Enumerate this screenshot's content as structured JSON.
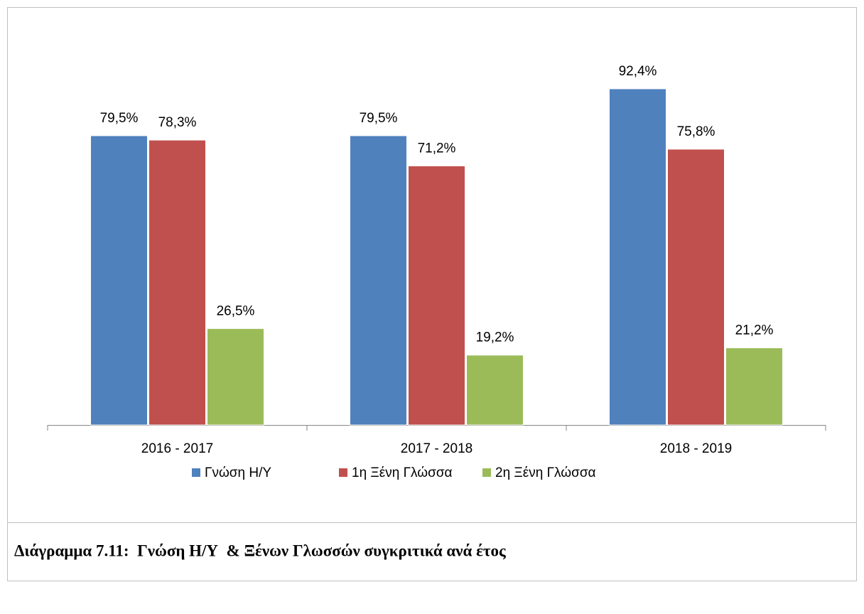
{
  "chart_data": {
    "type": "bar",
    "title": "Διάγραμμα 7.11:  Γνώση Η/Υ  & Ξένων Γλωσσών συγκριτικά ανά έτος",
    "categories": [
      "2016 - 2017",
      "2017 - 2018",
      "2018 - 2019"
    ],
    "series": [
      {
        "name": "Γνώση Η/Υ",
        "color": "#4f81bd",
        "values": [
          79.5,
          79.5,
          92.4
        ],
        "value_labels": [
          "79,5%",
          "79,5%",
          "92,4%"
        ]
      },
      {
        "name": "1η Ξένη Γλώσσα",
        "color": "#c0504d",
        "values": [
          78.3,
          71.2,
          75.8
        ],
        "value_labels": [
          "78,3%",
          "71,2%",
          "75,8%"
        ]
      },
      {
        "name": "2η Ξένη Γλώσσα",
        "color": "#9bbb59",
        "values": [
          26.5,
          19.2,
          21.2
        ],
        "value_labels": [
          "26,5%",
          "19,2%",
          "21,2%"
        ]
      }
    ],
    "ylim": [
      0,
      100
    ],
    "legend": "bottom"
  }
}
